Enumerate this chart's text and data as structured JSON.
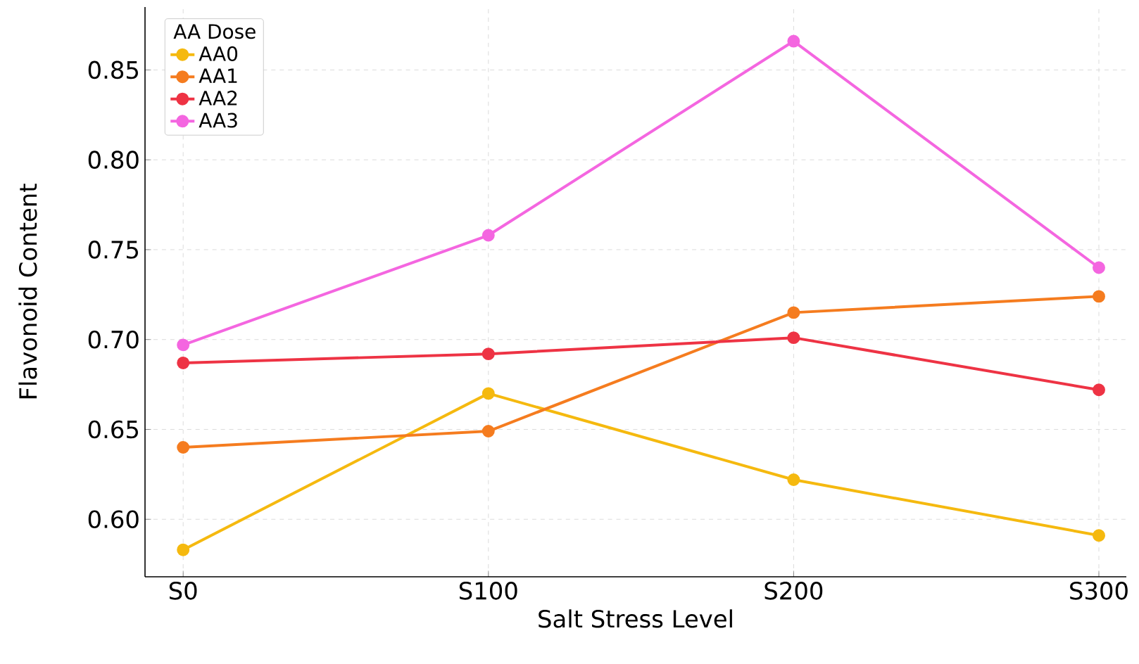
{
  "chart_data": {
    "type": "line",
    "xlabel": "Salt Stress Level",
    "ylabel": "Flavonoid Content",
    "legend_title": "AA Dose",
    "categories": [
      "S0",
      "S100",
      "S200",
      "S300"
    ],
    "series": [
      {
        "name": "AA0",
        "color": "#f5b90f",
        "values": [
          0.583,
          0.67,
          0.622,
          0.591
        ]
      },
      {
        "name": "AA1",
        "color": "#f57c1f",
        "values": [
          0.64,
          0.649,
          0.715,
          0.724
        ]
      },
      {
        "name": "AA2",
        "color": "#ee3344",
        "values": [
          0.687,
          0.692,
          0.701,
          0.672
        ]
      },
      {
        "name": "AA3",
        "color": "#f466e0",
        "values": [
          0.697,
          0.758,
          0.866,
          0.74
        ]
      }
    ],
    "ylim": [
      0.568,
      0.885
    ],
    "yticks": [
      {
        "value": 0.6,
        "label": "0.60"
      },
      {
        "value": 0.65,
        "label": "0.65"
      },
      {
        "value": 0.7,
        "label": "0.70"
      },
      {
        "value": 0.75,
        "label": "0.75"
      },
      {
        "value": 0.8,
        "label": "0.80"
      },
      {
        "value": 0.85,
        "label": "0.85"
      }
    ],
    "grid": true,
    "legend": "top left",
    "marker": "circle",
    "line_style": "solid"
  }
}
